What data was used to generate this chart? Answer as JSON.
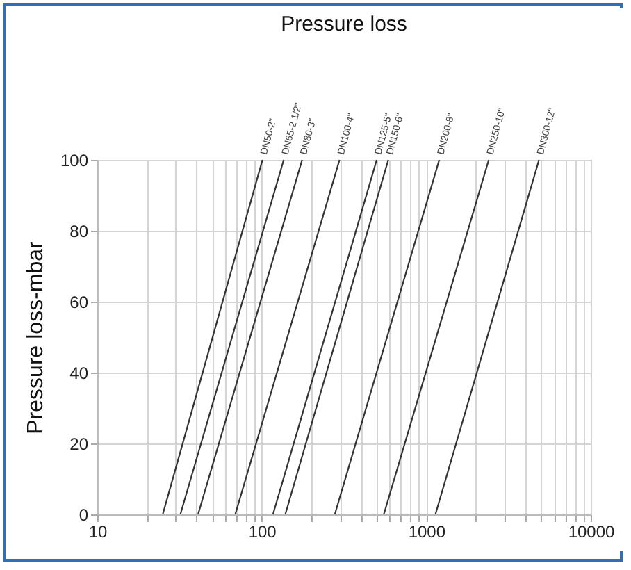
{
  "chart_data": {
    "type": "line",
    "title": "Pressure loss",
    "ylabel": "Pressure loss-mbar",
    "log": "x",
    "grid": true,
    "legend": false,
    "marker": "none",
    "line_style": "solid",
    "xlim": [
      10,
      10000
    ],
    "xticks": [
      10,
      {
        "value": 20,
        "label": null
      },
      {
        "value": 30,
        "label": null
      },
      {
        "value": 40,
        "label": null
      },
      {
        "value": 50,
        "label": null
      },
      {
        "value": 60,
        "label": null
      },
      {
        "value": 70,
        "label": null
      },
      {
        "value": 80,
        "label": null
      },
      {
        "value": 90,
        "label": null
      },
      100,
      {
        "value": 200,
        "label": null
      },
      {
        "value": 300,
        "label": null
      },
      {
        "value": 400,
        "label": null
      },
      {
        "value": 500,
        "label": null
      },
      {
        "value": 600,
        "label": null
      },
      {
        "value": 700,
        "label": null
      },
      {
        "value": 800,
        "label": null
      },
      {
        "value": 900,
        "label": null
      },
      1000,
      {
        "value": 2000,
        "label": null
      },
      {
        "value": 3000,
        "label": null
      },
      {
        "value": 4000,
        "label": null
      },
      {
        "value": 5000,
        "label": null
      },
      {
        "value": 6000,
        "label": null
      },
      {
        "value": 7000,
        "label": null
      },
      {
        "value": 8000,
        "label": null
      },
      {
        "value": 9000,
        "label": null
      },
      10000
    ],
    "ylim": [
      0,
      100
    ],
    "yticks": [
      0,
      20,
      40,
      60,
      80,
      100
    ],
    "series": [
      {
        "name": "DN50-2\"",
        "color": "#333333",
        "x": [
          25,
          101
        ],
        "values": [
          0,
          100
        ]
      },
      {
        "name": "DN65-2 1/2\"",
        "color": "#333333",
        "x": [
          32,
          136
        ],
        "values": [
          0,
          100
        ]
      },
      {
        "name": "DN80-3\"",
        "color": "#333333",
        "x": [
          41,
          176
        ],
        "values": [
          0,
          100
        ]
      },
      {
        "name": "DN100-4\"",
        "color": "#333333",
        "x": [
          69,
          297
        ],
        "values": [
          0,
          100
        ]
      },
      {
        "name": "DN125-5\"",
        "color": "#333333",
        "x": [
          117,
          500
        ],
        "values": [
          0,
          100
        ]
      },
      {
        "name": "DN150-6\"",
        "color": "#333333",
        "x": [
          139,
          588
        ],
        "values": [
          0,
          100
        ]
      },
      {
        "name": "DN200-8\"",
        "color": "#333333",
        "x": [
          278,
          1200
        ],
        "values": [
          0,
          100
        ]
      },
      {
        "name": "DN250-10\"",
        "color": "#333333",
        "x": [
          552,
          2400
        ],
        "values": [
          0,
          100
        ]
      },
      {
        "name": "DN300-12\"",
        "color": "#333333",
        "x": [
          1137,
          4850
        ],
        "values": [
          0,
          100
        ]
      }
    ]
  }
}
